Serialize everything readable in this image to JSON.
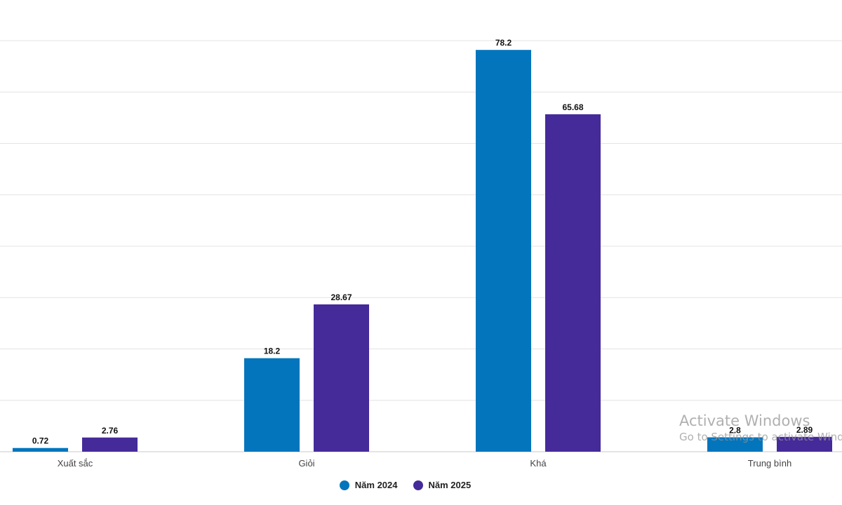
{
  "chart_data": {
    "type": "bar",
    "categories": [
      "Xuất sắc",
      "Giỏi",
      "Khá",
      "Trung bình"
    ],
    "series": [
      {
        "name": "Năm 2024",
        "color": "#0275bd",
        "values": [
          0.72,
          18.2,
          78.2,
          2.8
        ]
      },
      {
        "name": "Năm 2025",
        "color": "#452a9a",
        "values": [
          2.76,
          28.67,
          65.68,
          2.89
        ]
      }
    ],
    "ylim": [
      0,
      80
    ],
    "grid": true,
    "legend_position": "bottom-center",
    "data_labels": true
  },
  "watermark": {
    "title": "Activate Windows",
    "subtitle": "Go to Settings to activate Windows."
  }
}
